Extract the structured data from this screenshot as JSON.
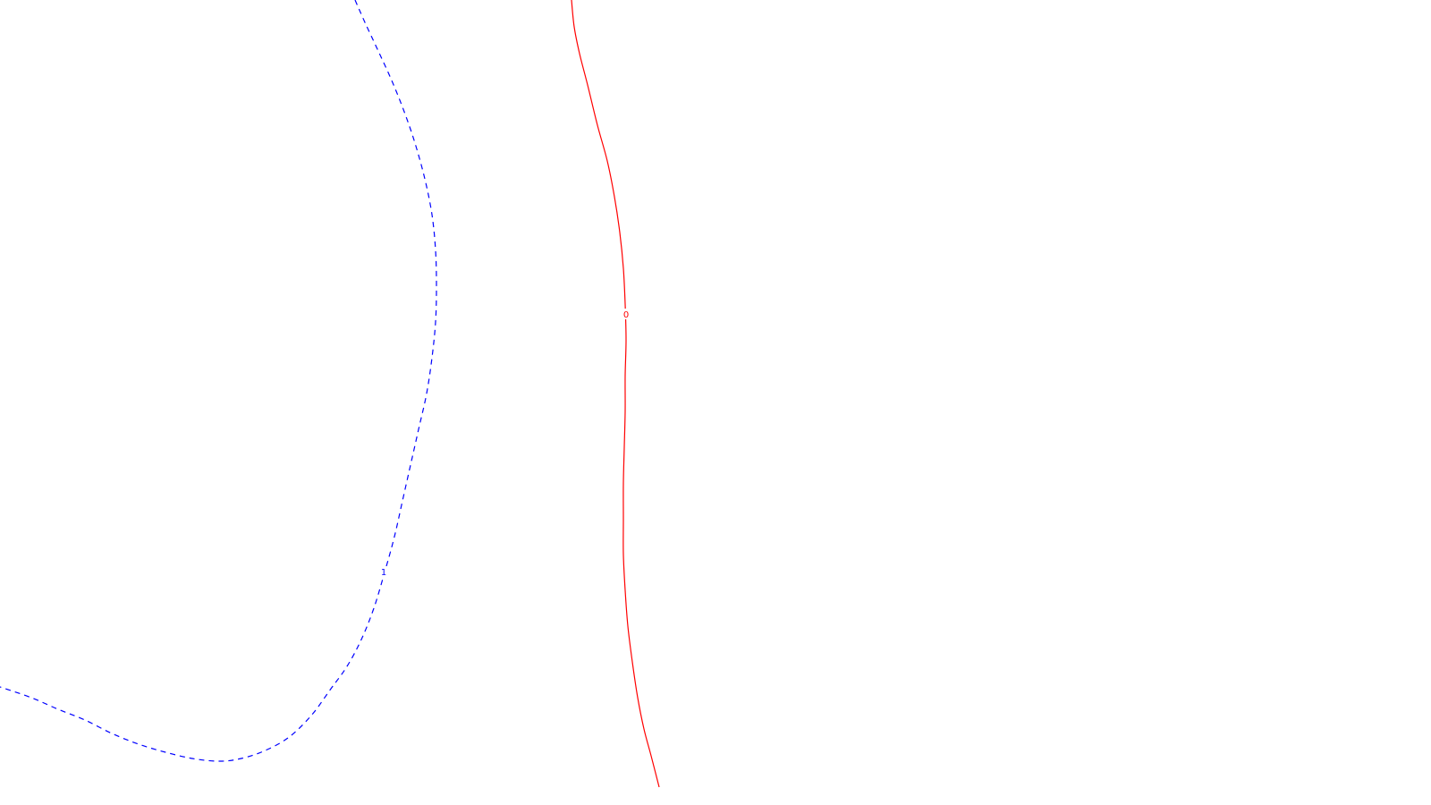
{
  "chart_data": {
    "type": "line",
    "grid": false,
    "series": [
      {
        "contour_label": "0",
        "color": "#ff0000",
        "line_style": "solid",
        "points": [
          [
            639,
            0
          ],
          [
            642,
            30
          ],
          [
            648,
            60
          ],
          [
            657,
            95
          ],
          [
            668,
            140
          ],
          [
            679,
            180
          ],
          [
            687,
            220
          ],
          [
            693,
            260
          ],
          [
            697,
            300
          ],
          [
            699,
            340
          ],
          [
            700,
            380
          ],
          [
            699,
            420
          ],
          [
            699,
            460
          ],
          [
            698,
            500
          ],
          [
            697,
            540
          ],
          [
            697,
            580
          ],
          [
            697,
            620
          ],
          [
            699,
            660
          ],
          [
            702,
            700
          ],
          [
            707,
            740
          ],
          [
            713,
            780
          ],
          [
            720,
            815
          ],
          [
            728,
            845
          ],
          [
            737,
            880
          ]
        ],
        "label_point": [
          700,
          352
        ]
      },
      {
        "contour_label": "1",
        "color": "#0000ff",
        "line_style": "dashed",
        "points": [
          [
            397,
            0
          ],
          [
            408,
            25
          ],
          [
            422,
            55
          ],
          [
            438,
            90
          ],
          [
            452,
            125
          ],
          [
            464,
            160
          ],
          [
            475,
            200
          ],
          [
            483,
            240
          ],
          [
            487,
            280
          ],
          [
            488,
            320
          ],
          [
            487,
            360
          ],
          [
            483,
            400
          ],
          [
            477,
            440
          ],
          [
            468,
            480
          ],
          [
            459,
            520
          ],
          [
            450,
            560
          ],
          [
            441,
            600
          ],
          [
            430,
            640
          ],
          [
            418,
            680
          ],
          [
            404,
            715
          ],
          [
            388,
            745
          ],
          [
            370,
            770
          ],
          [
            348,
            800
          ],
          [
            322,
            825
          ],
          [
            292,
            841
          ],
          [
            265,
            849
          ],
          [
            243,
            851
          ],
          [
            215,
            848
          ],
          [
            185,
            841
          ],
          [
            155,
            832
          ],
          [
            125,
            820
          ],
          [
            95,
            805
          ],
          [
            65,
            793
          ],
          [
            35,
            780
          ],
          [
            0,
            768
          ]
        ],
        "label_point": [
          429,
          640
        ]
      }
    ]
  }
}
